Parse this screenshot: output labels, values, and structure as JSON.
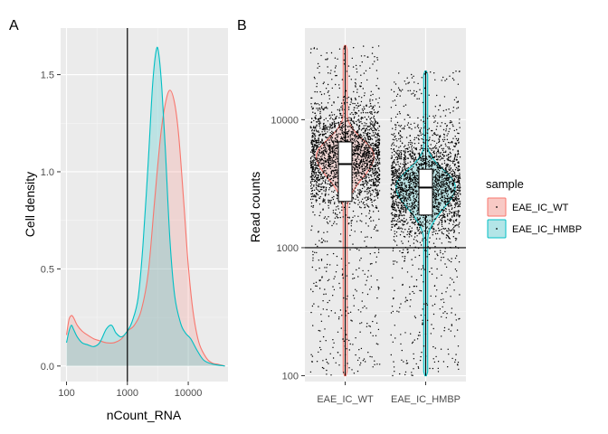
{
  "figure": {
    "panels": [
      "A",
      "B"
    ]
  },
  "chart_data": [
    {
      "panel": "A",
      "type": "area",
      "xlabel": "nCount_RNA",
      "ylabel": "Cell density",
      "x_scale": "log10",
      "xlim": [
        80,
        45000
      ],
      "ylim": [
        -0.08,
        1.74
      ],
      "x_ticks": [
        {
          "value": 100,
          "label": "100"
        },
        {
          "value": 1000,
          "label": "1000"
        },
        {
          "value": 10000,
          "label": "10000"
        }
      ],
      "y_ticks": [
        {
          "value": 0,
          "label": "0.0"
        },
        {
          "value": 0.5,
          "label": "0.5"
        },
        {
          "value": 1.0,
          "label": "1.0"
        },
        {
          "value": 1.5,
          "label": "1.5"
        }
      ],
      "vline": 1000,
      "grid": true,
      "series": [
        {
          "name": "EAE_IC_WT",
          "color": "#F8766D",
          "x": [
            100,
            110,
            120,
            130,
            150,
            180,
            220,
            280,
            350,
            450,
            600,
            800,
            1000,
            1300,
            1700,
            2200,
            2800,
            3500,
            4200,
            5000,
            6000,
            7000,
            8500,
            10000,
            12000,
            15000,
            20000,
            25000,
            30000,
            40000
          ],
          "y": [
            0.16,
            0.24,
            0.26,
            0.25,
            0.21,
            0.18,
            0.16,
            0.14,
            0.13,
            0.12,
            0.12,
            0.14,
            0.18,
            0.21,
            0.29,
            0.48,
            0.85,
            1.18,
            1.35,
            1.42,
            1.35,
            1.18,
            0.83,
            0.52,
            0.28,
            0.12,
            0.04,
            0.015,
            0.01,
            0.0
          ]
        },
        {
          "name": "EAE_IC_HMBP",
          "color": "#00BFC4",
          "x": [
            100,
            110,
            120,
            130,
            150,
            180,
            220,
            280,
            350,
            450,
            550,
            650,
            800,
            1000,
            1200,
            1500,
            1800,
            2200,
            2600,
            3000,
            3300,
            3700,
            4200,
            5000,
            6000,
            7500,
            9000,
            11000,
            14000,
            18000,
            25000,
            40000
          ],
          "y": [
            0.12,
            0.18,
            0.21,
            0.19,
            0.15,
            0.12,
            0.11,
            0.1,
            0.12,
            0.19,
            0.21,
            0.17,
            0.15,
            0.18,
            0.23,
            0.35,
            0.62,
            1.05,
            1.45,
            1.63,
            1.6,
            1.42,
            1.12,
            0.65,
            0.36,
            0.22,
            0.17,
            0.14,
            0.08,
            0.03,
            0.01,
            0.0
          ]
        }
      ]
    },
    {
      "panel": "B",
      "type": "scatter",
      "subtype": "violin-jitter-boxplot",
      "xlabel": "",
      "ylabel": "Read counts",
      "y_scale": "log10",
      "ylim": [
        90,
        52000
      ],
      "categories": [
        "EAE_IC_WT",
        "EAE_IC_HMBP"
      ],
      "y_ticks": [
        {
          "value": 100,
          "label": "100"
        },
        {
          "value": 1000,
          "label": "1000"
        },
        {
          "value": 10000,
          "label": "10000"
        }
      ],
      "hline": 1000,
      "grid": true,
      "point_color": "#000000",
      "series": [
        {
          "name": "EAE_IC_WT",
          "color": "#F8766D",
          "y_min": 100,
          "y_max": 38000,
          "box": {
            "q1": 2300,
            "median": 4500,
            "q3": 6700,
            "whisker_low": 100,
            "whisker_high": 38000
          },
          "violin_peak": 5200,
          "violin_peak_width": 0.8
        },
        {
          "name": "EAE_IC_HMBP",
          "color": "#00BFC4",
          "y_min": 100,
          "y_max": 24000,
          "box": {
            "q1": 1800,
            "median": 2950,
            "q3": 4100,
            "whisker_low": 100,
            "whisker_high": 24000
          },
          "violin_peak": 3000,
          "violin_peak_width": 0.82
        }
      ],
      "legend": {
        "title": "sample",
        "position": "right",
        "entries": [
          {
            "label": "EAE_IC_WT",
            "color": "#F8766D",
            "fill": "#F8C9C5"
          },
          {
            "label": "EAE_IC_HMBP",
            "color": "#00BFC4",
            "fill": "#B3E5E7"
          }
        ]
      }
    }
  ]
}
